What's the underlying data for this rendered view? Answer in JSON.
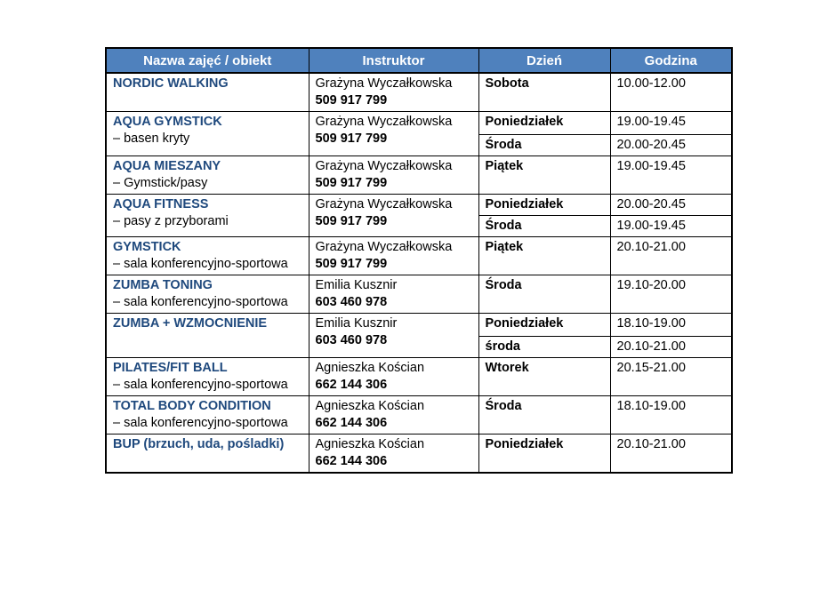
{
  "table": {
    "headers": [
      "Nazwa zajęć / obiekt",
      "Instruktor",
      "Dzień",
      "Godzina"
    ],
    "rows": [
      {
        "name": "NORDIC WALKING",
        "sub": "",
        "instructor": "Grażyna Wyczałkowska",
        "phone": "509 917 799",
        "slots": [
          {
            "day": "Sobota",
            "time": "10.00-12.00"
          }
        ]
      },
      {
        "name": "AQUA GYMSTICK",
        "sub": "– basen kryty",
        "instructor": "Grażyna Wyczałkowska",
        "phone": "509 917 799",
        "slots": [
          {
            "day": "Poniedziałek",
            "time": "19.00-19.45"
          },
          {
            "day": "Środa",
            "time": "20.00-20.45"
          }
        ]
      },
      {
        "name": "AQUA MIESZANY",
        "sub": "– Gymstick/pasy",
        "instructor": "Grażyna Wyczałkowska",
        "phone": "509 917 799",
        "slots": [
          {
            "day": "Piątek",
            "time": "19.00-19.45"
          }
        ]
      },
      {
        "name": "AQUA FITNESS",
        "sub": "– pasy  z przyborami",
        "instructor": "Grażyna Wyczałkowska",
        "phone": "509 917 799",
        "slots": [
          {
            "day": "Poniedziałek",
            "time": "20.00-20.45"
          },
          {
            "day": "Środa",
            "time": "19.00-19.45"
          }
        ]
      },
      {
        "name": "GYMSTICK",
        "sub": "– sala konferencyjno-sportowa",
        "instructor": "Grażyna Wyczałkowska",
        "phone": "509 917 799",
        "slots": [
          {
            "day": "Piątek",
            "time": "20.10-21.00"
          }
        ]
      },
      {
        "name": "ZUMBA TONING",
        "sub": "– sala konferencyjno-sportowa",
        "instructor": "Emilia Kusznir",
        "phone": "603 460 978",
        "slots": [
          {
            "day": "Środa",
            "time": "19.10-20.00"
          }
        ]
      },
      {
        "name": "ZUMBA + WZMOCNIENIE",
        "sub": "",
        "instructor": "Emilia Kusznir",
        "phone": "603 460 978",
        "slots": [
          {
            "day": "Poniedziałek",
            "time": "18.10-19.00"
          },
          {
            "day": "środa",
            "time": "20.10-21.00"
          }
        ]
      },
      {
        "name": "PILATES/FIT BALL",
        "sub": "– sala konferencyjno-sportowa",
        "instructor": "Agnieszka Kościan",
        "phone": "662 144 306",
        "slots": [
          {
            "day": "Wtorek",
            "time": "20.15-21.00"
          }
        ]
      },
      {
        "name": "TOTAL BODY CONDITION",
        "sub": "– sala konferencyjno-sportowa",
        "instructor": "Agnieszka Kościan",
        "phone": "662 144 306",
        "slots": [
          {
            "day": "Środa",
            "time": "18.10-19.00"
          }
        ]
      },
      {
        "name": "BUP (brzuch, uda, pośladki)",
        "sub": "",
        "instructor": "Agnieszka Kościan",
        "phone": "662 144 306",
        "slots": [
          {
            "day": "Poniedziałek",
            "time": "20.10-21.00"
          }
        ]
      }
    ]
  },
  "colors": {
    "header_bg": "#4f81bd",
    "header_text": "#ffffff",
    "class_name_text": "#1f497d",
    "border": "#000000"
  }
}
